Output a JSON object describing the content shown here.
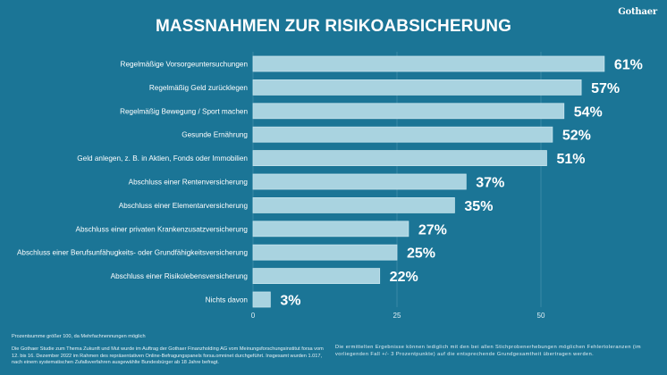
{
  "header": {
    "title": "MASSNAHMEN ZUR RISIKOABSICHERUNG",
    "logo": "Gothaer"
  },
  "chart_data": {
    "type": "bar",
    "orientation": "horizontal",
    "title": "MASSNAHMEN ZUR RISIKOABSICHERUNG",
    "xlabel": "",
    "ylabel": "",
    "xlim": [
      0,
      61
    ],
    "xticks": [
      0,
      25,
      50
    ],
    "grid": true,
    "unit": "%",
    "categories": [
      "Regelmäßige Vorsorgeuntersuchungen",
      "Regelmäßig Geld zurücklegen",
      "Regelmäßig Bewegung / Sport machen",
      "Gesunde Ernährung",
      "Geld anlegen, z. B. in Aktien, Fonds oder Immobilien",
      "Abschluss einer Rentenversicherung",
      "Abschluss einer Elementarversicherung",
      "Abschluss einer privaten Krankenzusatzversicherung",
      "Abschluss einer Berufsunfähugkeits- oder Grundfähigkeitsversicherung",
      "Abschluss einer Risikolebensversicherung",
      "Nichts davon"
    ],
    "values": [
      61,
      57,
      54,
      52,
      51,
      37,
      35,
      27,
      25,
      22,
      3
    ],
    "data_labels": [
      "61%",
      "57%",
      "54%",
      "52%",
      "51%",
      "37%",
      "35%",
      "27%",
      "25%",
      "22%",
      "3%"
    ],
    "colors": {
      "background": "#1b7596",
      "bar": "#a9d3e0",
      "bar_border": "#c5e3ec",
      "grid": "#3a89a6"
    }
  },
  "footer": {
    "note": "Prozentsumme größer 100, da Mehrfachnennungen möglich",
    "study": "Die Gothaer Studie zum Thema Zukunft und Mut wurde im Auftrag der Gothaer Finanzholding AG vom Meinungsforschungsinstitut forsa vom 12. bis 16. Dezember 2022 im Rahmen des repräsentativen Online-Befragungspanels forsa.omninet durchgeführt. Insgesamt wurden 1.017, nach einem systematischen Zufallsverfahren ausgewählte Bundesbürger ab 18 Jahre befragt.",
    "disclaimer": "Die ermittelten Ergebnisse können lediglich mit den bei allen Stichprobenerhebungen möglichen Fehlertoleranzen (im vorliegenden Fall +/- 3 Prozentpunkte) auf die entsprechende Grundgesamtheit übertragen werden."
  }
}
